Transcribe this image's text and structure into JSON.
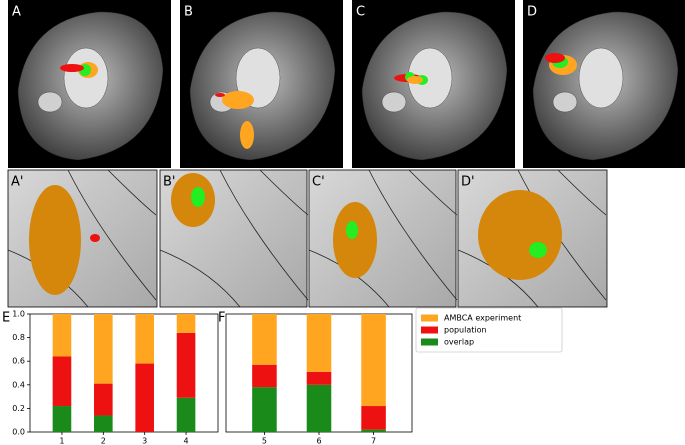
{
  "panels": {
    "labels": [
      "A",
      "B",
      "C",
      "D",
      "A'",
      "B'",
      "C'",
      "D'"
    ]
  },
  "chart_data": [
    {
      "type": "stacked-bar",
      "title": "E",
      "categories": [
        "1",
        "2",
        "3",
        "4"
      ],
      "series": [
        {
          "name": "overlap",
          "color": "#1a8a1a",
          "values": [
            0.22,
            0.14,
            0.0,
            0.29
          ]
        },
        {
          "name": "population",
          "color": "#ee1111",
          "values": [
            0.42,
            0.27,
            0.58,
            0.55
          ]
        },
        {
          "name": "AMBCA experiment",
          "color": "#ffa520",
          "values": [
            0.36,
            0.59,
            0.42,
            0.16
          ]
        }
      ],
      "ylim": [
        0,
        1
      ],
      "yticks": [
        {
          "value": 0,
          "label": "0.0"
        },
        0.2,
        0.4,
        0.6,
        0.8,
        {
          "value": 1,
          "label": "1.0"
        }
      ]
    },
    {
      "type": "stacked-bar",
      "title": "F",
      "categories": [
        "5",
        "6",
        "7"
      ],
      "series": [
        {
          "color": "#1a8a1a",
          "values": [
            0.38,
            0.4,
            0.02
          ]
        },
        {
          "color": "#ee1111",
          "values": [
            0.19,
            0.11,
            0.2
          ]
        },
        {
          "color": "#ffa520",
          "values": [
            0.43,
            0.49,
            0.78
          ]
        }
      ],
      "ylim": [
        0,
        1
      ]
    }
  ]
}
